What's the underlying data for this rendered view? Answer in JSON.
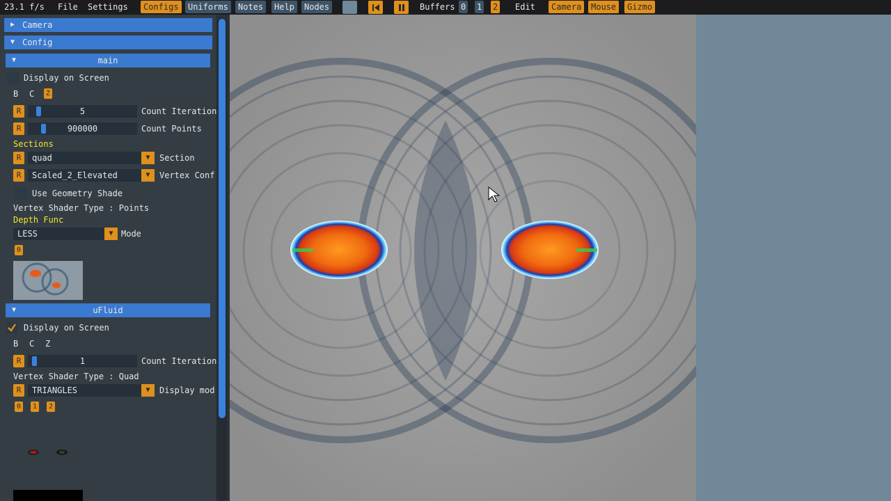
{
  "menubar": {
    "fps": "23.1 f/s",
    "file": "File",
    "settings": "Settings",
    "configs": "Configs",
    "uniforms": "Uniforms",
    "notes": "Notes",
    "help": "Help",
    "nodes": "Nodes",
    "buffers_label": "Buffers",
    "buffers": [
      "0",
      "1",
      "2"
    ],
    "edit": "Edit",
    "camera": "Camera",
    "mouse": "Mouse",
    "gizmo": "Gizmo"
  },
  "panel": {
    "camera_header": "Camera",
    "config_header": "Config",
    "main": {
      "header": "main",
      "display_on_screen": "Display on Screen",
      "bcz": [
        "B",
        "C",
        "Z"
      ],
      "reset": "R",
      "count_iteration_value": "5",
      "count_iteration_label": "Count Iteration",
      "count_points_value": "900000",
      "count_points_label": "Count Points",
      "sections_title": "Sections",
      "section_value": "quad",
      "section_label": "Section",
      "vertex_conf_value": "Scaled_2_Elevated",
      "vertex_conf_label": "Vertex Conf",
      "use_geometry_shader": "Use Geometry Shade",
      "vertex_shader_type": "Vertex Shader Type : Points",
      "depth_func_title": "Depth Func",
      "mode_value": "LESS",
      "mode_label": "Mode",
      "buffer_zero": "0"
    },
    "ufluid": {
      "header": "uFluid",
      "display_on_screen": "Display on Screen",
      "bcz": [
        "B",
        "C",
        "Z"
      ],
      "reset": "R",
      "count_iteration_value": "1",
      "count_iteration_label": "Count Iteration",
      "vertex_shader_type": "Vertex Shader Type : Quad",
      "display_mode_value": "TRIANGLES",
      "display_mode_label": "Display mod",
      "buffers": [
        "0",
        "1",
        "2"
      ]
    }
  },
  "colors": {
    "accent_blue": "#3a7ad0",
    "accent_orange": "#e0901c",
    "yellow_label": "#f4e430",
    "right_background": "#708898"
  },
  "icons": {
    "rewind": "skip-back-icon",
    "pause": "pause-icon",
    "checkmark": "check-icon",
    "cursor": "mouse-cursor-icon"
  }
}
